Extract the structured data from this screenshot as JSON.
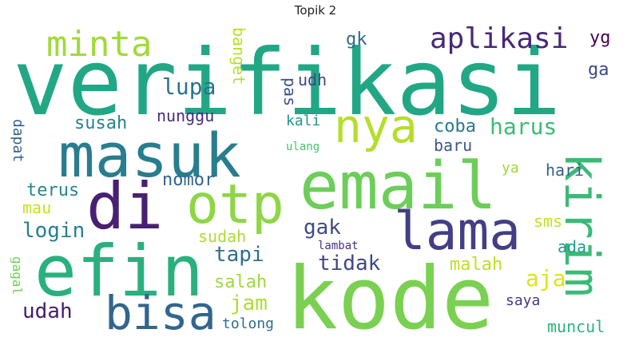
{
  "title": "Topik 2",
  "words": [
    {
      "text": "verifikasi",
      "color": "#22a784"
    },
    {
      "text": "kode",
      "color": "#7ad151"
    },
    {
      "text": "email",
      "color": "#6cce59"
    },
    {
      "text": "masuk",
      "color": "#287d8e"
    },
    {
      "text": "efin",
      "color": "#2ab07f"
    },
    {
      "text": "di",
      "color": "#482071"
    },
    {
      "text": "otp",
      "color": "#8ed645"
    },
    {
      "text": "lama",
      "color": "#433e85"
    },
    {
      "text": "nya",
      "color": "#b5de2b"
    },
    {
      "text": "bisa",
      "color": "#31668e"
    },
    {
      "text": "kirim",
      "color": "#3aba76"
    },
    {
      "text": "minta",
      "color": "#a0da39"
    },
    {
      "text": "aplikasi",
      "color": "#482878"
    },
    {
      "text": "yg",
      "color": "#440154"
    },
    {
      "text": "gk",
      "color": "#31688e"
    },
    {
      "text": "banget",
      "color": "#b8de29"
    },
    {
      "text": "lupa",
      "color": "#2c728e"
    },
    {
      "text": "udh",
      "color": "#404688"
    },
    {
      "text": "ga",
      "color": "#3e4989"
    },
    {
      "text": "pas",
      "color": "#3b528b"
    },
    {
      "text": "nunggu",
      "color": "#472d7b"
    },
    {
      "text": "susah",
      "color": "#25848e"
    },
    {
      "text": "kali",
      "color": "#20928c"
    },
    {
      "text": "harus",
      "color": "#3dbc74"
    },
    {
      "text": "dapat",
      "color": "#355f8d"
    },
    {
      "text": "coba",
      "color": "#2a788e"
    },
    {
      "text": "ulang",
      "color": "#4ac16d"
    },
    {
      "text": "baru",
      "color": "#38598c"
    },
    {
      "text": "ya",
      "color": "#9fda3a"
    },
    {
      "text": "hari",
      "color": "#34608d"
    },
    {
      "text": "nomor",
      "color": "#32658e"
    },
    {
      "text": "terus",
      "color": "#24878e"
    },
    {
      "text": "mau",
      "color": "#c8e020"
    },
    {
      "text": "gak",
      "color": "#3e4a89"
    },
    {
      "text": "sms",
      "color": "#c2df23"
    },
    {
      "text": "sudah",
      "color": "#addc30"
    },
    {
      "text": "login",
      "color": "#277f8e"
    },
    {
      "text": "lambat",
      "color": "#46327e"
    },
    {
      "text": "ada",
      "color": "#1e9b8a"
    },
    {
      "text": "tapi",
      "color": "#2e6f8e"
    },
    {
      "text": "tidak",
      "color": "#3f4788"
    },
    {
      "text": "gagal",
      "color": "#6ece58"
    },
    {
      "text": "malah",
      "color": "#bddf26"
    },
    {
      "text": "aja",
      "color": "#dfe318"
    },
    {
      "text": "salah",
      "color": "#9dd93b"
    },
    {
      "text": "udah",
      "color": "#481b6d"
    },
    {
      "text": "jam",
      "color": "#b0dd2f"
    },
    {
      "text": "saya",
      "color": "#453882"
    },
    {
      "text": "tolong",
      "color": "#2f6c8e"
    },
    {
      "text": "muncul",
      "color": "#2db27d"
    }
  ]
}
